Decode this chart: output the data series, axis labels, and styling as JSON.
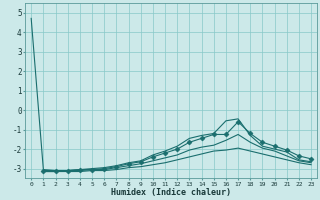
{
  "xlabel": "Humidex (Indice chaleur)",
  "background_color": "#cce9e9",
  "grid_color": "#88c8c8",
  "line_color": "#1a6e6e",
  "xlim": [
    -0.5,
    23.5
  ],
  "ylim": [
    -3.5,
    5.5
  ],
  "yticks": [
    -3,
    -2,
    -1,
    0,
    1,
    2,
    3,
    4,
    5
  ],
  "xticks": [
    0,
    1,
    2,
    3,
    4,
    5,
    6,
    7,
    8,
    9,
    10,
    11,
    12,
    13,
    14,
    15,
    16,
    17,
    18,
    19,
    20,
    21,
    22,
    23
  ],
  "series": [
    {
      "x": [
        0,
        1,
        2,
        3,
        4,
        5,
        6,
        7,
        8,
        9,
        10,
        11,
        12,
        13,
        14,
        15,
        16,
        17,
        18,
        19,
        20,
        21,
        22,
        23
      ],
      "y": [
        4.7,
        -3.05,
        -3.1,
        -3.1,
        -3.05,
        -3.0,
        -2.95,
        -2.85,
        -2.7,
        -2.6,
        -2.3,
        -2.1,
        -1.85,
        -1.45,
        -1.3,
        -1.2,
        -0.55,
        -0.45,
        -1.3,
        -1.85,
        -2.0,
        -2.15,
        -2.55,
        -2.65
      ],
      "marker": null
    },
    {
      "x": [
        1,
        2,
        3,
        4,
        5,
        6,
        7,
        8,
        9,
        10,
        11,
        12,
        13,
        14,
        15,
        16,
        17,
        18,
        19,
        20,
        21,
        22,
        23
      ],
      "y": [
        -3.1,
        -3.1,
        -3.1,
        -3.05,
        -3.05,
        -3.0,
        -2.9,
        -2.75,
        -2.65,
        -2.4,
        -2.2,
        -2.0,
        -1.65,
        -1.45,
        -1.25,
        -1.25,
        -0.6,
        -1.2,
        -1.65,
        -1.85,
        -2.05,
        -2.35,
        -2.5
      ],
      "marker": "D",
      "markersize": 2.5
    },
    {
      "x": [
        1,
        2,
        3,
        4,
        5,
        6,
        7,
        8,
        9,
        10,
        11,
        12,
        13,
        14,
        15,
        16,
        17,
        18,
        19,
        20,
        21,
        22,
        23
      ],
      "y": [
        -3.15,
        -3.15,
        -3.1,
        -3.1,
        -3.05,
        -3.05,
        -2.95,
        -2.85,
        -2.75,
        -2.6,
        -2.45,
        -2.3,
        -2.05,
        -1.9,
        -1.8,
        -1.55,
        -1.25,
        -1.65,
        -1.95,
        -2.1,
        -2.35,
        -2.6,
        -2.7
      ],
      "marker": null
    },
    {
      "x": [
        1,
        2,
        3,
        4,
        5,
        6,
        7,
        8,
        9,
        10,
        11,
        12,
        13,
        14,
        15,
        16,
        17,
        18,
        19,
        20,
        21,
        22,
        23
      ],
      "y": [
        -3.15,
        -3.15,
        -3.15,
        -3.15,
        -3.1,
        -3.1,
        -3.05,
        -2.95,
        -2.9,
        -2.8,
        -2.7,
        -2.55,
        -2.4,
        -2.25,
        -2.1,
        -2.05,
        -1.95,
        -2.1,
        -2.25,
        -2.4,
        -2.55,
        -2.7,
        -2.8
      ],
      "marker": null
    }
  ]
}
